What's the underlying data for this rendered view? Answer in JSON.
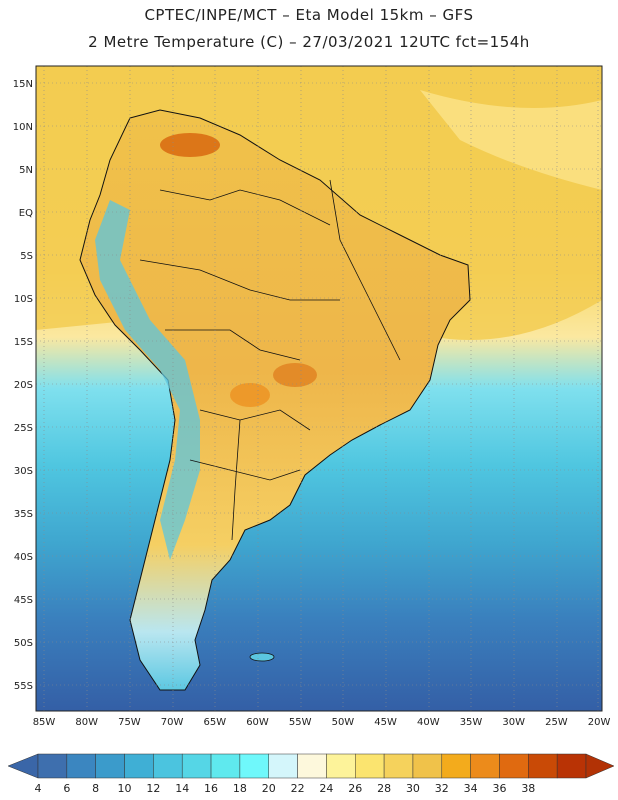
{
  "header": {
    "line1": "CPTEC/INPE/MCT –  Eta Model 15km – GFS",
    "line2": "2 Metre Temperature (C) – 27/03/2021 12UTC fct=154h"
  },
  "lat_labels": [
    "15N",
    "10N",
    "5N",
    "EQ",
    "5S",
    "10S",
    "15S",
    "20S",
    "25S",
    "30S",
    "35S",
    "40S",
    "45S",
    "50S",
    "55S"
  ],
  "lon_labels": [
    "85W",
    "80W",
    "75W",
    "70W",
    "65W",
    "60W",
    "55W",
    "50W",
    "45W",
    "40W",
    "35W",
    "30W",
    "25W",
    "20W"
  ],
  "colorbar": {
    "ticks": [
      "4",
      "6",
      "8",
      "10",
      "12",
      "14",
      "16",
      "18",
      "20",
      "22",
      "24",
      "26",
      "28",
      "30",
      "32",
      "34",
      "36",
      "38"
    ],
    "colors": [
      "#3e6fae",
      "#3b86c0",
      "#3b9bcb",
      "#3fafd5",
      "#4bc4df",
      "#55d6e6",
      "#5fe9ee",
      "#6ff8fb",
      "#d4f6fb",
      "#fdf8dc",
      "#fdf39a",
      "#fbe46f",
      "#f5d25c",
      "#f0c24a",
      "#f3ab1c",
      "#ec8b1b",
      "#e06a10",
      "#c94a06",
      "#b93305"
    ],
    "under_color": "#3a66a8",
    "over_color": "#b23205"
  }
}
